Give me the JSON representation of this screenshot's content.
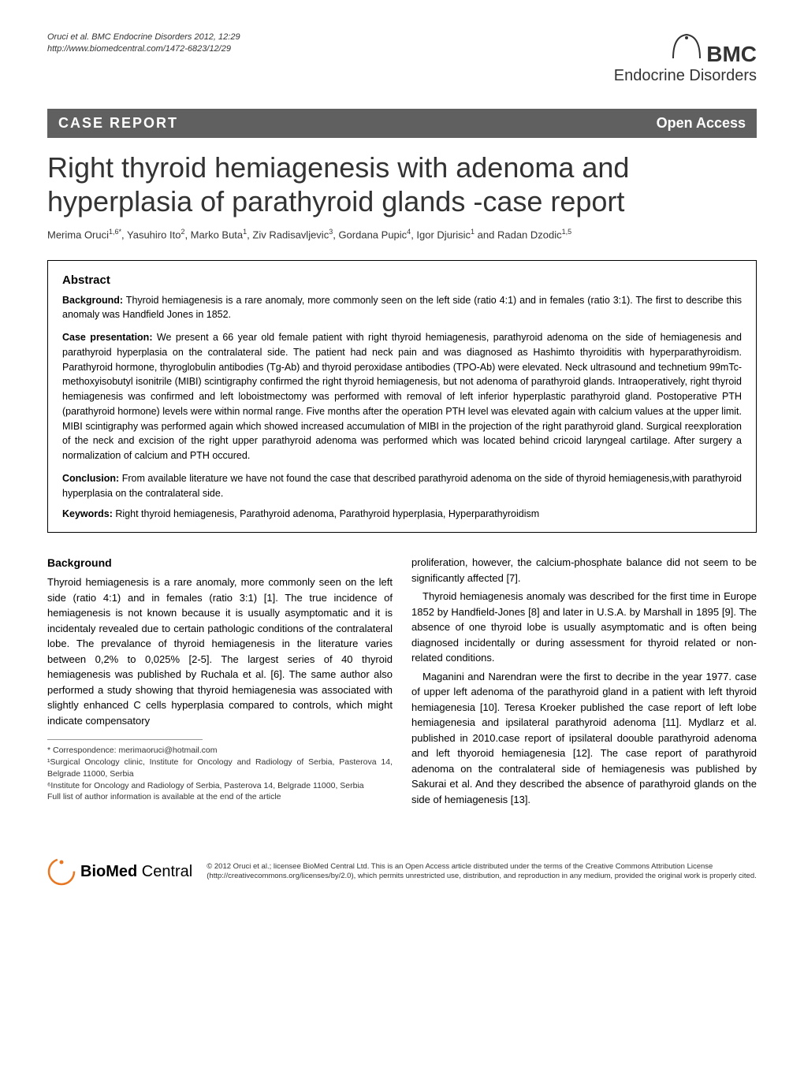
{
  "header": {
    "citation_line1": "Oruci et al. BMC Endocrine Disorders 2012, 12:29",
    "citation_line2": "http://www.biomedcentral.com/1472-6823/12/29",
    "journal_logo_top": "BMC",
    "journal_logo_bottom": "Endocrine Disorders"
  },
  "banner": {
    "left": "CASE REPORT",
    "right": "Open Access"
  },
  "title": "Right thyroid hemiagenesis with adenoma and hyperplasia of parathyroid glands -case report",
  "authors_html": "Merima Oruci<sup>1,6*</sup>, Yasuhiro Ito<sup>2</sup>, Marko Buta<sup>1</sup>, Ziv Radisavljevic<sup>3</sup>, Gordana Pupic<sup>4</sup>, Igor Djurisic<sup>1</sup> and Radan Dzodic<sup>1,5</sup>",
  "abstract": {
    "heading": "Abstract",
    "background_label": "Background:",
    "background_text": " Thyroid hemiagenesis is a rare anomaly, more commonly seen on the left side (ratio 4:1) and in females (ratio 3:1). The first to describe this anomaly was Handfield Jones in 1852.",
    "case_label": "Case presentation:",
    "case_text": " We present a 66 year old female patient with right thyroid hemiagenesis, parathyroid adenoma on the side of hemiagenesis and parathyroid hyperplasia on the contralateral side. The patient had neck pain and was diagnosed as Hashimto thyroiditis with hyperparathyroidism. Parathyroid hormone, thyroglobulin antibodies (Tg-Ab) and thyroid peroxidase antibodies (TPO-Ab) were elevated. Neck ultrasound and technetium 99mTc-methoxyisobutyl isonitrile (MIBI) scintigraphy confirmed the right thyroid hemiagenesis, but not adenoma of parathyroid glands. Intraoperatively, right thyroid hemiagenesis was confirmed and left loboistmectomy was performed with removal of left inferior hyperplastic parathyroid gland. Postoperative PTH (parathyroid hormone) levels were within normal range. Five months after the operation PTH level was elevated again with calcium values at the upper limit. MIBI scintigraphy was performed again which showed increased accumulation of MIBI in the projection of the right parathyroid gland. Surgical reexploration of the neck and excision of the right upper parathyroid adenoma was performed which was located behind cricoid laryngeal cartilage. After surgery a normalization of calcium and PTH occured.",
    "conclusion_label": "Conclusion:",
    "conclusion_text": " From available literature we have not found the case that described parathyroid adenoma on the side of thyroid hemiagenesis,with parathyroid hyperplasia on the contralateral side.",
    "keywords_label": "Keywords:",
    "keywords_text": " Right thyroid hemiagenesis, Parathyroid adenoma, Parathyroid hyperplasia, Hyperparathyroidism"
  },
  "body": {
    "background_heading": "Background",
    "left_p1": "Thyroid hemiagenesis is a rare anomaly, more commonly seen on the left side (ratio 4:1) and in females (ratio 3:1) [1]. The true incidence of hemiagenesis is not known because it is usually asymptomatic and it is incidentaly revealed due to certain pathologic conditions of the contralateral lobe. The prevalance of thyroid hemiagenesis in the literature varies between 0,2% to 0,025% [2-5]. The largest series of 40 thyroid hemiagenesis was published by Ruchala et al. [6]. The same author also performed a study showing that thyroid hemiagenesia was associated with slightly enhanced C cells hyperplasia compared to controls, which might indicate compensatory",
    "right_p1": "proliferation, however, the calcium-phosphate balance did not seem to be significantly affected [7].",
    "right_p2": "Thyroid hemiagenesis anomaly was described for the first time in Europe 1852 by Handfield-Jones [8] and later in U.S.A. by Marshall in 1895 [9]. The absence of one thyroid lobe is usually asymptomatic and is often being diagnosed incidentally or during assessment for thyroid related or non-related conditions.",
    "right_p3": "Maganini and Narendran were the first to decribe in the year 1977. case of upper left adenoma of the parathyroid gland in a patient with left thyroid hemiagenesia [10]. Teresa Kroeker published the case report of left lobe hemiagenesia and ipsilateral parathyroid adenoma [11]. Mydlarz et al. published in 2010.case report of ipsilateral doouble parathyroid adenoma and left thyoroid hemiagenesia [12]. The case report of parathyroid adenoma on the contralateral side of hemiagenesis was published by Sakurai et al. And they described the absence of parathyroid glands on the side of hemiagenesis [13]."
  },
  "correspondence": {
    "line1": "* Correspondence: merimaoruci@hotmail.com",
    "line2": "¹Surgical Oncology clinic, Institute for Oncology and Radiology of Serbia, Pasterova 14, Belgrade 11000, Serbia",
    "line3": "⁶Institute for Oncology and Radiology of Serbia, Pasterova 14, Belgrade 11000, Serbia",
    "line4": "Full list of author information is available at the end of the article"
  },
  "footer": {
    "logo_strong": "BioMed",
    "logo_light": " Central",
    "license": "© 2012 Oruci et al.; licensee BioMed Central Ltd. This is an Open Access article distributed under the terms of the Creative Commons Attribution License (http://creativecommons.org/licenses/by/2.0), which permits unrestricted use, distribution, and reproduction in any medium, provided the original work is properly cited."
  },
  "colors": {
    "banner_bg": "#606060",
    "text": "#000000",
    "orange": "#e87722"
  }
}
